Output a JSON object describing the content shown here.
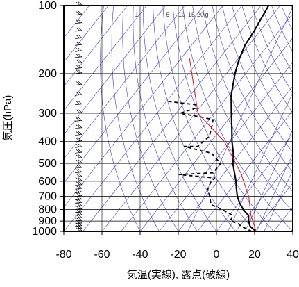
{
  "chart_data": {
    "type": "line",
    "chart_kind": "skew-T log-p",
    "xlabel": "気温(実線), 露点(破線)",
    "ylabel": "気圧(hPa)",
    "x_range": [
      -80,
      40
    ],
    "y_range": [
      1000,
      100
    ],
    "y_scale": "log",
    "x_ticks": [
      "-80",
      "-60",
      "-40",
      "-20",
      "0",
      "20",
      "40"
    ],
    "y_ticks": [
      "100",
      "200",
      "300",
      "400",
      "500",
      "600",
      "700",
      "800",
      "900",
      "1000"
    ],
    "mixing_ratio_labels": [
      "1",
      "5",
      "10",
      "15",
      "20",
      "g"
    ],
    "grid": true,
    "colors": {
      "axes": "#000000",
      "grid": "#000000",
      "isotherm_adiabat": "#3b3bcf",
      "parcel_path": "#e02020",
      "temperature": "#000000",
      "dewpoint": "#000000"
    },
    "series": [
      {
        "name": "気温(実線)",
        "style": "solid",
        "points": [
          {
            "x": 20.8,
            "y": 1000
          },
          {
            "x": 15.6,
            "y": 950
          },
          {
            "x": 12.6,
            "y": 900
          },
          {
            "x": 10.2,
            "y": 850
          },
          {
            "x": 5.0,
            "y": 800
          },
          {
            "x": 0.5,
            "y": 750
          },
          {
            "x": -3.5,
            "y": 700
          },
          {
            "x": -7.0,
            "y": 650
          },
          {
            "x": -10.5,
            "y": 600
          },
          {
            "x": -14.8,
            "y": 550
          },
          {
            "x": -19.5,
            "y": 500
          },
          {
            "x": -23.5,
            "y": 450
          },
          {
            "x": -29.0,
            "y": 400
          },
          {
            "x": -34.5,
            "y": 350
          },
          {
            "x": -41.0,
            "y": 300
          },
          {
            "x": -48.5,
            "y": 250
          },
          {
            "x": -55.5,
            "y": 200
          },
          {
            "x": -59.0,
            "y": 175
          },
          {
            "x": -62.0,
            "y": 150
          },
          {
            "x": -63.0,
            "y": 130
          },
          {
            "x": -64.5,
            "y": 115
          },
          {
            "x": -66.0,
            "y": 100
          }
        ]
      },
      {
        "name": "露点(破線)",
        "style": "dashed",
        "points": [
          {
            "x": 18.5,
            "y": 1000
          },
          {
            "x": 11.0,
            "y": 950
          },
          {
            "x": 7.8,
            "y": 920
          },
          {
            "x": 3.0,
            "y": 900
          },
          {
            "x": 2.0,
            "y": 850
          },
          {
            "x": -6.0,
            "y": 800
          },
          {
            "x": -14.0,
            "y": 760
          },
          {
            "x": -18.0,
            "y": 700
          },
          {
            "x": -22.0,
            "y": 650
          },
          {
            "x": -23.5,
            "y": 600
          },
          {
            "x": -23.0,
            "y": 580
          },
          {
            "x": -43.0,
            "y": 560
          },
          {
            "x": -26.0,
            "y": 550
          },
          {
            "x": -26.0,
            "y": 500
          },
          {
            "x": -35.0,
            "y": 450
          },
          {
            "x": -41.0,
            "y": 440
          },
          {
            "x": -52.0,
            "y": 420
          },
          {
            "x": -45.0,
            "y": 420
          },
          {
            "x": -43.0,
            "y": 380
          },
          {
            "x": -46.0,
            "y": 340
          },
          {
            "x": -48.0,
            "y": 320
          },
          {
            "x": -57.0,
            "y": 310
          },
          {
            "x": -68.0,
            "y": 300
          },
          {
            "x": -62.0,
            "y": 285
          },
          {
            "x": -63.0,
            "y": 275
          },
          {
            "x": -80.0,
            "y": 265
          }
        ]
      },
      {
        "name": "",
        "style": "solid",
        "role": "parcel",
        "points": [
          {
            "x": 20.8,
            "y": 1000
          },
          {
            "x": 11.5,
            "y": 850
          },
          {
            "x": 2.5,
            "y": 700
          },
          {
            "x": -11.5,
            "y": 550
          },
          {
            "x": -33.0,
            "y": 400
          },
          {
            "x": -58.5,
            "y": 300
          },
          {
            "x": -86.0,
            "y": 170
          }
        ]
      }
    ],
    "wind_barbs": {
      "present": true,
      "levels_hpa": [
        1000,
        975,
        950,
        925,
        900,
        875,
        850,
        825,
        800,
        775,
        750,
        725,
        700,
        675,
        650,
        625,
        600,
        575,
        550,
        525,
        500,
        475,
        450,
        425,
        400,
        375,
        350,
        325,
        300,
        275,
        250,
        225,
        200,
        190,
        180,
        170,
        160,
        150,
        140,
        130,
        120,
        110,
        100
      ]
    }
  }
}
